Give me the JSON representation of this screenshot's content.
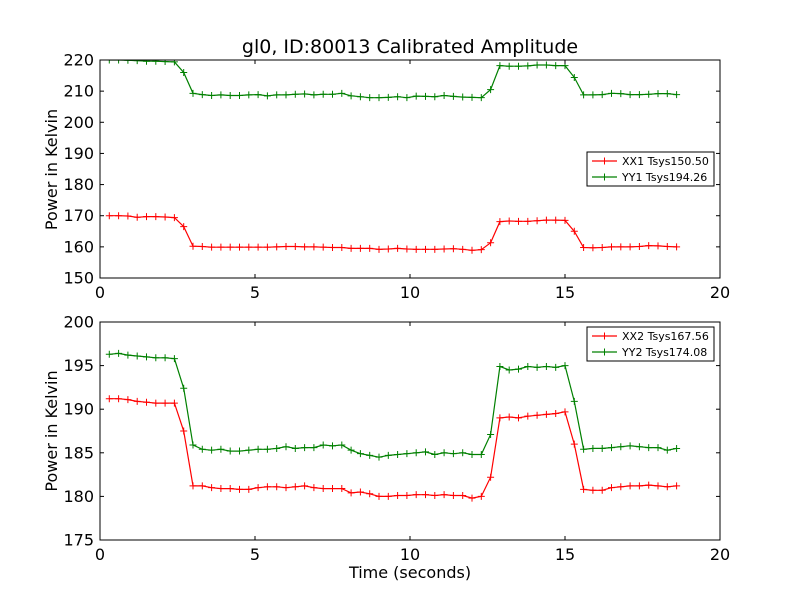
{
  "chart_data": [
    {
      "type": "line",
      "title": "gl0, ID:80013 Calibrated Amplitude",
      "xlabel": "",
      "ylabel": "Power in Kelvin",
      "xlim": [
        0,
        20
      ],
      "ylim": [
        150,
        220
      ],
      "xticks": [
        "0",
        "5",
        "10",
        "15",
        "20"
      ],
      "yticks": [
        "150",
        "160",
        "170",
        "180",
        "190",
        "200",
        "210",
        "220"
      ],
      "grid": false,
      "legend_position": "center-right",
      "x": [
        0.3,
        0.6,
        0.9,
        1.2,
        1.5,
        1.8,
        2.1,
        2.4,
        2.7,
        3.0,
        3.3,
        3.6,
        3.9,
        4.2,
        4.5,
        4.8,
        5.1,
        5.4,
        5.7,
        6.0,
        6.3,
        6.6,
        6.9,
        7.2,
        7.5,
        7.8,
        8.1,
        8.4,
        8.7,
        9.0,
        9.3,
        9.6,
        9.9,
        10.2,
        10.5,
        10.8,
        11.1,
        11.4,
        11.7,
        12.0,
        12.3,
        12.6,
        12.9,
        13.2,
        13.5,
        13.8,
        14.1,
        14.4,
        14.7,
        15.0,
        15.3,
        15.6,
        15.9,
        16.2,
        16.5,
        16.8,
        17.1,
        17.4,
        17.7,
        18.0,
        18.3,
        18.6
      ],
      "series": [
        {
          "name": "XX1 Tsys150.50",
          "color": "#ff0000",
          "values": [
            170.0,
            170.0,
            169.9,
            169.5,
            169.7,
            169.7,
            169.6,
            169.4,
            166.5,
            160.2,
            160.1,
            159.9,
            159.9,
            159.9,
            159.9,
            159.9,
            159.9,
            159.9,
            160.0,
            160.1,
            160.1,
            160.0,
            160.0,
            159.9,
            159.8,
            159.8,
            159.5,
            159.5,
            159.5,
            159.2,
            159.3,
            159.5,
            159.3,
            159.2,
            159.2,
            159.2,
            159.3,
            159.4,
            159.2,
            158.9,
            159.1,
            161.3,
            168.1,
            168.3,
            168.2,
            168.2,
            168.4,
            168.6,
            168.6,
            168.5,
            165.0,
            159.8,
            159.7,
            159.8,
            160.0,
            160.0,
            160.0,
            160.1,
            160.4,
            160.3,
            160.1,
            160.0
          ]
        },
        {
          "name": "YY1 Tsys194.26",
          "color": "#008000",
          "values": [
            220.0,
            220.0,
            219.9,
            219.8,
            219.6,
            219.6,
            219.5,
            219.4,
            216.0,
            209.3,
            208.9,
            208.6,
            208.8,
            208.6,
            208.6,
            208.8,
            208.9,
            208.5,
            208.8,
            208.8,
            209.0,
            209.1,
            208.8,
            209.0,
            209.0,
            209.3,
            208.5,
            208.2,
            207.9,
            207.9,
            208.0,
            208.2,
            207.9,
            208.4,
            208.3,
            208.2,
            208.6,
            208.3,
            208.1,
            208.0,
            207.9,
            210.5,
            218.2,
            218.0,
            218.0,
            218.1,
            218.4,
            218.4,
            218.2,
            218.2,
            214.4,
            208.8,
            208.8,
            208.9,
            209.3,
            209.2,
            208.9,
            208.9,
            209.0,
            209.2,
            209.2,
            208.9
          ]
        }
      ]
    },
    {
      "type": "line",
      "title": "",
      "xlabel": "Time (seconds)",
      "ylabel": "Power in Kelvin",
      "xlim": [
        0,
        20
      ],
      "ylim": [
        175,
        200
      ],
      "xticks": [
        "0",
        "5",
        "10",
        "15",
        "20"
      ],
      "yticks": [
        "175",
        "180",
        "185",
        "190",
        "195",
        "200"
      ],
      "grid": false,
      "legend_position": "top-right",
      "x": [
        0.3,
        0.6,
        0.9,
        1.2,
        1.5,
        1.8,
        2.1,
        2.4,
        2.7,
        3.0,
        3.3,
        3.6,
        3.9,
        4.2,
        4.5,
        4.8,
        5.1,
        5.4,
        5.7,
        6.0,
        6.3,
        6.6,
        6.9,
        7.2,
        7.5,
        7.8,
        8.1,
        8.4,
        8.7,
        9.0,
        9.3,
        9.6,
        9.9,
        10.2,
        10.5,
        10.8,
        11.1,
        11.4,
        11.7,
        12.0,
        12.3,
        12.6,
        12.9,
        13.2,
        13.5,
        13.8,
        14.1,
        14.4,
        14.7,
        15.0,
        15.3,
        15.6,
        15.9,
        16.2,
        16.5,
        16.8,
        17.1,
        17.4,
        17.7,
        18.0,
        18.3,
        18.6
      ],
      "series": [
        {
          "name": "XX2 Tsys167.56",
          "color": "#ff0000",
          "values": [
            191.2,
            191.2,
            191.1,
            190.9,
            190.8,
            190.7,
            190.7,
            190.7,
            187.5,
            181.2,
            181.2,
            181.0,
            180.9,
            180.9,
            180.8,
            180.8,
            181.0,
            181.1,
            181.1,
            181.0,
            181.1,
            181.2,
            181.0,
            180.9,
            180.9,
            180.9,
            180.4,
            180.5,
            180.3,
            180.0,
            180.0,
            180.1,
            180.1,
            180.2,
            180.2,
            180.1,
            180.2,
            180.1,
            180.1,
            179.8,
            180.0,
            182.2,
            189.0,
            189.1,
            189.0,
            189.2,
            189.3,
            189.4,
            189.5,
            189.7,
            186.0,
            180.8,
            180.7,
            180.7,
            181.0,
            181.1,
            181.2,
            181.2,
            181.3,
            181.2,
            181.1,
            181.2
          ]
        },
        {
          "name": "YY2 Tsys174.08",
          "color": "#008000",
          "values": [
            196.3,
            196.4,
            196.2,
            196.1,
            196.0,
            195.9,
            195.9,
            195.8,
            192.4,
            185.9,
            185.4,
            185.3,
            185.4,
            185.2,
            185.2,
            185.3,
            185.4,
            185.4,
            185.5,
            185.7,
            185.5,
            185.6,
            185.6,
            185.9,
            185.8,
            185.9,
            185.3,
            184.9,
            184.7,
            184.5,
            184.7,
            184.8,
            184.9,
            185.0,
            185.1,
            184.8,
            185.0,
            184.9,
            185.0,
            184.8,
            184.8,
            187.1,
            194.9,
            194.5,
            194.6,
            194.9,
            194.8,
            194.9,
            194.8,
            195.0,
            190.9,
            185.4,
            185.5,
            185.5,
            185.6,
            185.7,
            185.8,
            185.7,
            185.6,
            185.6,
            185.3,
            185.5
          ]
        }
      ]
    }
  ]
}
